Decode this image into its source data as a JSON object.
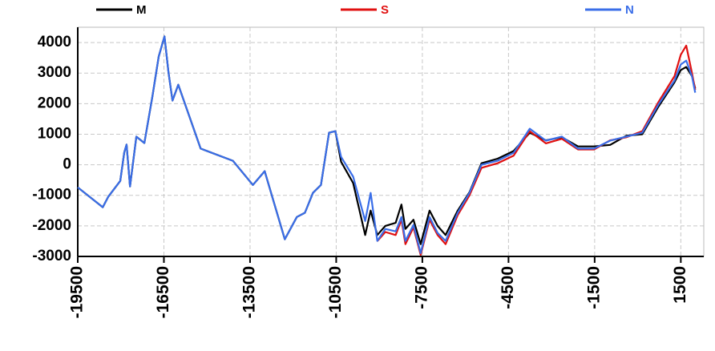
{
  "chart_data": {
    "type": "line",
    "x": [
      -19500,
      -18630,
      -18440,
      -18020,
      -17880,
      -17800,
      -17680,
      -17460,
      -17180,
      -16900,
      -16680,
      -16480,
      -16340,
      -16200,
      -16000,
      -15220,
      -14100,
      -13400,
      -12990,
      -12290,
      -11870,
      -11590,
      -11310,
      -11030,
      -10750,
      -10530,
      -10330,
      -9910,
      -9490,
      -9300,
      -9070,
      -8790,
      -8430,
      -8230,
      -8090,
      -7810,
      -7560,
      -7250,
      -6970,
      -6690,
      -6270,
      -5860,
      -5440,
      -4880,
      -4320,
      -3760,
      -3200,
      -2640,
      -2080,
      -1520,
      -960,
      -400,
      160,
      720,
      1280,
      1500,
      1690,
      1890,
      2000
    ],
    "series": [
      {
        "name": "M",
        "color": "#000000",
        "values": [
          -740,
          -1390,
          -1050,
          -530,
          400,
          660,
          -710,
          920,
          710,
          2230,
          3540,
          4200,
          3020,
          2100,
          2620,
          530,
          130,
          -660,
          -210,
          -2440,
          -1710,
          -1570,
          -920,
          -660,
          1050,
          1100,
          100,
          -600,
          -2300,
          -1500,
          -2300,
          -2000,
          -1900,
          -1300,
          -2100,
          -1800,
          -2600,
          -1500,
          -2000,
          -2300,
          -1500,
          -900,
          50,
          200,
          450,
          1050,
          800,
          900,
          600,
          600,
          650,
          950,
          1000,
          1900,
          2700,
          3100,
          3200,
          2900,
          2500
        ]
      },
      {
        "name": "S",
        "color": "#e01010",
        "values": [
          null,
          null,
          null,
          null,
          null,
          null,
          null,
          null,
          null,
          null,
          null,
          null,
          null,
          null,
          null,
          null,
          null,
          null,
          null,
          null,
          null,
          null,
          null,
          null,
          null,
          null,
          null,
          null,
          null,
          null,
          -2500,
          -2200,
          -2300,
          -1800,
          -2600,
          -2050,
          -2950,
          -1800,
          -2300,
          -2600,
          -1650,
          -1000,
          -100,
          50,
          300,
          1100,
          700,
          850,
          500,
          500,
          800,
          900,
          1100,
          2050,
          2900,
          3600,
          3900,
          3000,
          2450
        ]
      },
      {
        "name": "N",
        "color": "#3a6ee8",
        "values": [
          -740,
          -1390,
          -1050,
          -530,
          400,
          660,
          -710,
          920,
          710,
          2230,
          3540,
          4200,
          3020,
          2100,
          2620,
          530,
          130,
          -660,
          -210,
          -2440,
          -1710,
          -1570,
          -920,
          -660,
          1050,
          1100,
          260,
          -390,
          -1840,
          -920,
          -2490,
          -2100,
          -2180,
          -1710,
          -2490,
          -1970,
          -2890,
          -1710,
          -2230,
          -2490,
          -1570,
          -920,
          0,
          130,
          390,
          1180,
          790,
          920,
          530,
          530,
          790,
          920,
          1050,
          1970,
          2760,
          3280,
          3410,
          2890,
          2360
        ]
      }
    ],
    "xlim": [
      -19500,
      2300
    ],
    "ylim": [
      -3000,
      4500
    ],
    "xticks": [
      -19500,
      -16500,
      -13500,
      -10500,
      -7500,
      -4500,
      -1500,
      1500
    ],
    "yticks": [
      -3000,
      -2000,
      -1000,
      0,
      1000,
      2000,
      3000,
      4000
    ],
    "grid": true
  }
}
